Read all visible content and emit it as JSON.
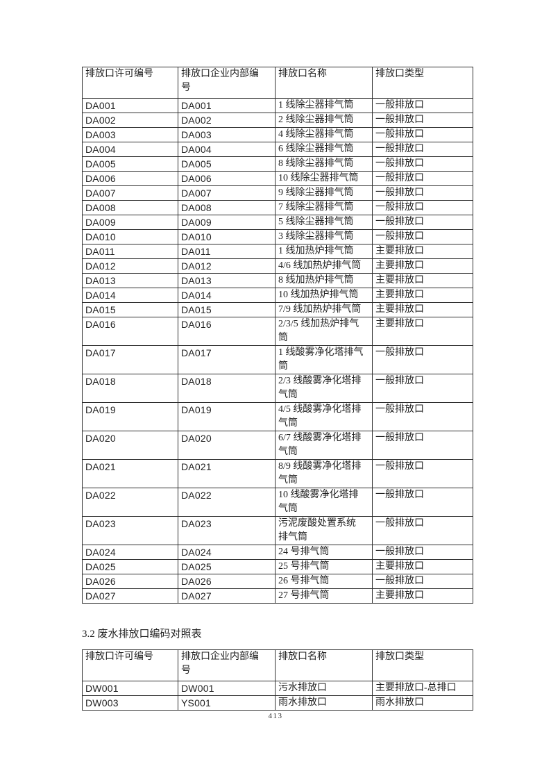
{
  "page": {
    "section_title": "3.2 废水排放口编码对照表",
    "page_number": "413"
  },
  "air_table": {
    "headers": [
      "排放口许可编号",
      "排放口企业内部编\n号",
      "排放口名称",
      "排放口类型"
    ],
    "rows": [
      [
        "DA001",
        "DA001",
        "1 线除尘器排气筒",
        "一般排放口"
      ],
      [
        "DA002",
        "DA002",
        "2 线除尘器排气筒",
        "一般排放口"
      ],
      [
        "DA003",
        "DA003",
        "4 线除尘器排气筒",
        "一般排放口"
      ],
      [
        "DA004",
        "DA004",
        "6 线除尘器排气筒",
        "一般排放口"
      ],
      [
        "DA005",
        "DA005",
        "8 线除尘器排气筒",
        "一般排放口"
      ],
      [
        "DA006",
        "DA006",
        "10 线除尘器排气筒",
        "一般排放口"
      ],
      [
        "DA007",
        "DA007",
        "9 线除尘器排气筒",
        "一般排放口"
      ],
      [
        "DA008",
        "DA008",
        "7 线除尘器排气筒",
        "一般排放口"
      ],
      [
        "DA009",
        "DA009",
        "5 线除尘器排气筒",
        "一般排放口"
      ],
      [
        "DA010",
        "DA010",
        "3 线除尘器排气筒",
        "一般排放口"
      ],
      [
        "DA011",
        "DA011",
        "1 线加热炉排气筒",
        "主要排放口"
      ],
      [
        "DA012",
        "DA012",
        "4/6 线加热炉排气筒",
        "主要排放口"
      ],
      [
        "DA013",
        "DA013",
        "8 线加热炉排气筒",
        "主要排放口"
      ],
      [
        "DA014",
        "DA014",
        "10 线加热炉排气筒",
        "主要排放口"
      ],
      [
        "DA015",
        "DA015",
        "7/9 线加热炉排气筒",
        "主要排放口"
      ],
      [
        "DA016",
        "DA016",
        "2/3/5 线加热炉排气\n筒",
        "主要排放口"
      ],
      [
        "DA017",
        "DA017",
        "1 线酸雾净化塔排气\n筒",
        "一般排放口"
      ],
      [
        "DA018",
        "DA018",
        "2/3 线酸雾净化塔排\n气筒",
        "一般排放口"
      ],
      [
        "DA019",
        "DA019",
        "4/5 线酸雾净化塔排\n气筒",
        "一般排放口"
      ],
      [
        "DA020",
        "DA020",
        "6/7 线酸雾净化塔排\n气筒",
        "一般排放口"
      ],
      [
        "DA021",
        "DA021",
        "8/9 线酸雾净化塔排\n气筒",
        "一般排放口"
      ],
      [
        "DA022",
        "DA022",
        "10 线酸雾净化塔排\n气筒",
        "一般排放口"
      ],
      [
        "DA023",
        "DA023",
        "污泥废酸处置系统\n排气筒",
        "一般排放口"
      ],
      [
        "DA024",
        "DA024",
        "24 号排气筒",
        "一般排放口"
      ],
      [
        "DA025",
        "DA025",
        "25 号排气筒",
        "主要排放口"
      ],
      [
        "DA026",
        "DA026",
        "26 号排气筒",
        "一般排放口"
      ],
      [
        "DA027",
        "DA027",
        "27 号排气筒",
        "主要排放口"
      ]
    ]
  },
  "water_table": {
    "headers": [
      "排放口许可编号",
      "排放口企业内部编\n号",
      "排放口名称",
      "排放口类型"
    ],
    "rows": [
      [
        "DW001",
        "DW001",
        "污水排放口",
        "主要排放口-总排口"
      ],
      [
        "DW003",
        "YS001",
        "雨水排放口",
        "雨水排放口"
      ]
    ]
  }
}
